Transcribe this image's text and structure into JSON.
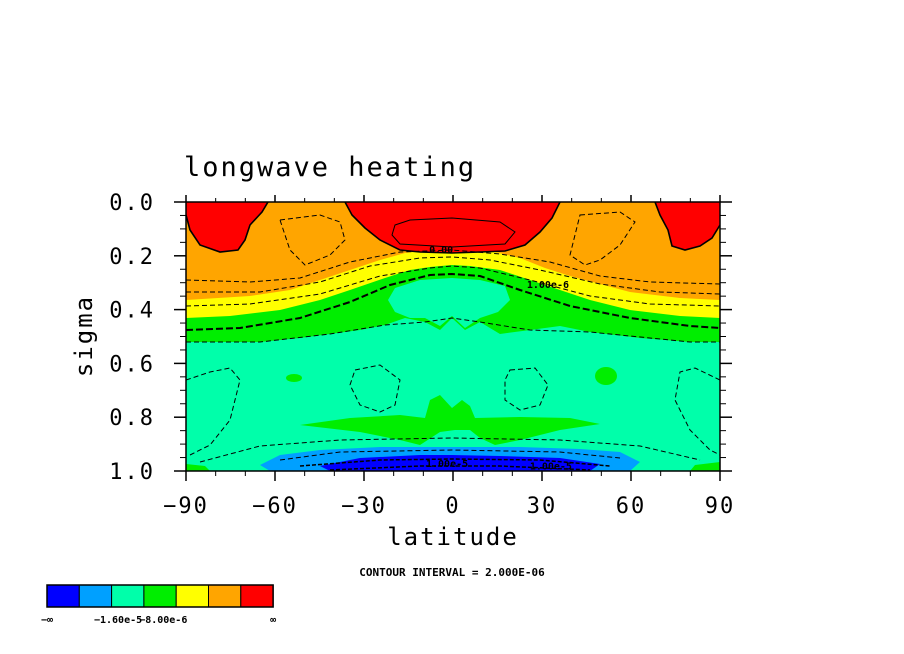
{
  "chart_data": {
    "type": "contour",
    "title": "longwave heating",
    "xlabel": "latitude",
    "ylabel": "sigma",
    "xlim": [
      -90,
      90
    ],
    "ylim": [
      1.0,
      0.0
    ],
    "x_ticks": [
      -90,
      -60,
      -30,
      0,
      30,
      60,
      90
    ],
    "x_tick_labels": [
      "−90",
      "−60",
      "−30",
      "0",
      "30",
      "60",
      "90"
    ],
    "y_ticks": [
      0.0,
      0.2,
      0.4,
      0.6,
      0.8,
      1.0
    ],
    "y_tick_labels": [
      "0.0",
      "0.2",
      "0.4",
      "0.6",
      "0.8",
      "1.0"
    ],
    "contour_interval_text": "CONTOUR INTERVAL = 2.000E-06",
    "contour_labels": [
      {
        "text": "0.00",
        "lat": -4,
        "sigma": 0.19
      },
      {
        "text": "1.00e-6",
        "lat": 32,
        "sigma": 0.32
      },
      {
        "text": "1.00e-5",
        "lat": -2,
        "sigma": 0.985
      },
      {
        "text": "1.00e-5",
        "lat": 33,
        "sigma": 0.995
      }
    ],
    "color_levels": [
      "#0000ff",
      "#00a0ff",
      "#00ffaa",
      "#00ee00",
      "#ffff00",
      "#ffa500",
      "#ff0000"
    ],
    "legend_labels": [
      "−∞",
      "−1.60e-5",
      "−8.00e-6",
      "∞"
    ],
    "regions": {
      "upper_red_caps": "sigma 0.0–0.17 near poles and 0.0–0.18 centered on equator",
      "orange": "sigma 0.0–0.3",
      "yellow": "sigma 0.3–0.4 band",
      "green": "sigma 0.4–0.5 band",
      "aqua": "sigma 0.5–0.95",
      "blue": "near-surface sigma 0.95–1.0 between −70 and 70"
    }
  }
}
